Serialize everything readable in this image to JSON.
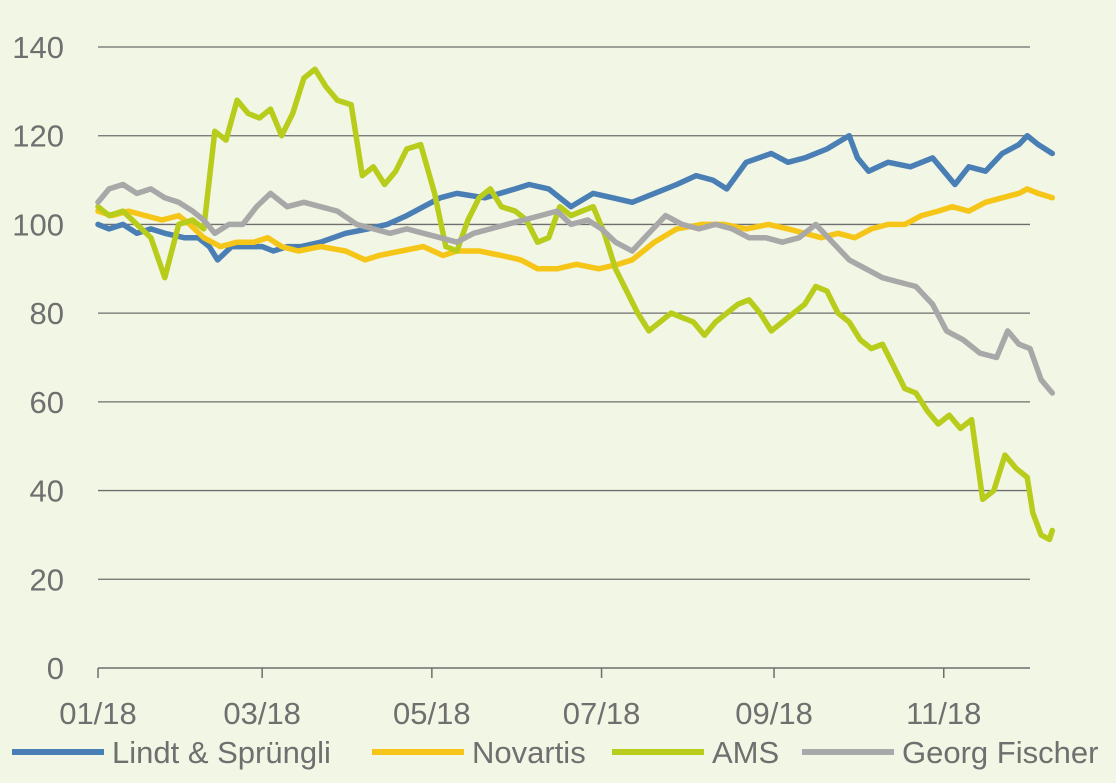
{
  "chart_data": {
    "type": "line",
    "title": "",
    "xlabel": "",
    "ylabel": "",
    "ylim": [
      0,
      140
    ],
    "xlim": [
      "2018-01-01",
      "2018-12-02"
    ],
    "yticks": [
      0,
      20,
      40,
      60,
      80,
      100,
      120,
      140
    ],
    "x_tick_labels": [
      "01/18",
      "03/18",
      "05/18",
      "07/18",
      "09/18",
      "11/18"
    ],
    "x_tick_dates": [
      "2018-01-01",
      "2018-03-01",
      "2018-05-01",
      "2018-07-01",
      "2018-09-01",
      "2018-11-01"
    ],
    "grid": "horizontal",
    "legend_position": "bottom",
    "background": "#f2f6e4",
    "series": [
      {
        "name": "Lindt & Sprüngli",
        "color": "#4a7fb5",
        "points": [
          [
            "2018-01-01",
            100
          ],
          [
            "2018-01-05",
            99
          ],
          [
            "2018-01-10",
            100
          ],
          [
            "2018-01-15",
            98
          ],
          [
            "2018-01-20",
            99
          ],
          [
            "2018-01-25",
            98
          ],
          [
            "2018-02-01",
            97
          ],
          [
            "2018-02-06",
            97
          ],
          [
            "2018-02-10",
            95
          ],
          [
            "2018-02-13",
            92
          ],
          [
            "2018-02-18",
            95
          ],
          [
            "2018-02-24",
            95
          ],
          [
            "2018-03-01",
            95
          ],
          [
            "2018-03-05",
            94
          ],
          [
            "2018-03-10",
            95
          ],
          [
            "2018-03-15",
            95
          ],
          [
            "2018-03-22",
            96
          ],
          [
            "2018-03-31",
            98
          ],
          [
            "2018-04-08",
            99
          ],
          [
            "2018-04-15",
            100
          ],
          [
            "2018-04-22",
            102
          ],
          [
            "2018-04-28",
            104
          ],
          [
            "2018-05-04",
            106
          ],
          [
            "2018-05-10",
            107
          ],
          [
            "2018-05-20",
            106
          ],
          [
            "2018-05-31",
            108
          ],
          [
            "2018-06-05",
            109
          ],
          [
            "2018-06-12",
            108
          ],
          [
            "2018-06-20",
            104
          ],
          [
            "2018-06-28",
            107
          ],
          [
            "2018-07-05",
            106
          ],
          [
            "2018-07-12",
            105
          ],
          [
            "2018-07-20",
            107
          ],
          [
            "2018-07-28",
            109
          ],
          [
            "2018-08-04",
            111
          ],
          [
            "2018-08-10",
            110
          ],
          [
            "2018-08-15",
            108
          ],
          [
            "2018-08-22",
            114
          ],
          [
            "2018-08-31",
            116
          ],
          [
            "2018-09-06",
            114
          ],
          [
            "2018-09-12",
            115
          ],
          [
            "2018-09-20",
            117
          ],
          [
            "2018-09-28",
            120
          ],
          [
            "2018-10-01",
            115
          ],
          [
            "2018-10-05",
            112
          ],
          [
            "2018-10-12",
            114
          ],
          [
            "2018-10-20",
            113
          ],
          [
            "2018-10-28",
            115
          ],
          [
            "2018-11-01",
            112
          ],
          [
            "2018-11-05",
            109
          ],
          [
            "2018-11-10",
            113
          ],
          [
            "2018-11-16",
            112
          ],
          [
            "2018-11-22",
            116
          ],
          [
            "2018-11-28",
            118
          ],
          [
            "2018-12-01",
            120
          ],
          [
            "2018-12-05",
            118
          ],
          [
            "2018-12-10",
            116
          ]
        ]
      },
      {
        "name": "Novartis",
        "color": "#f5c518",
        "points": [
          [
            "2018-01-01",
            103
          ],
          [
            "2018-01-06",
            102
          ],
          [
            "2018-01-12",
            103
          ],
          [
            "2018-01-18",
            102
          ],
          [
            "2018-01-24",
            101
          ],
          [
            "2018-01-30",
            102
          ],
          [
            "2018-02-03",
            100
          ],
          [
            "2018-02-08",
            97
          ],
          [
            "2018-02-14",
            95
          ],
          [
            "2018-02-20",
            96
          ],
          [
            "2018-02-26",
            96
          ],
          [
            "2018-03-03",
            97
          ],
          [
            "2018-03-08",
            95
          ],
          [
            "2018-03-14",
            94
          ],
          [
            "2018-03-22",
            95
          ],
          [
            "2018-03-31",
            94
          ],
          [
            "2018-04-07",
            92
          ],
          [
            "2018-04-12",
            93
          ],
          [
            "2018-04-20",
            94
          ],
          [
            "2018-04-28",
            95
          ],
          [
            "2018-05-05",
            93
          ],
          [
            "2018-05-10",
            94
          ],
          [
            "2018-05-18",
            94
          ],
          [
            "2018-05-26",
            93
          ],
          [
            "2018-06-02",
            92
          ],
          [
            "2018-06-08",
            90
          ],
          [
            "2018-06-15",
            90
          ],
          [
            "2018-06-22",
            91
          ],
          [
            "2018-06-30",
            90
          ],
          [
            "2018-07-07",
            91
          ],
          [
            "2018-07-12",
            92
          ],
          [
            "2018-07-20",
            96
          ],
          [
            "2018-07-28",
            99
          ],
          [
            "2018-08-06",
            100
          ],
          [
            "2018-08-14",
            100
          ],
          [
            "2018-08-22",
            99
          ],
          [
            "2018-08-30",
            100
          ],
          [
            "2018-09-06",
            99
          ],
          [
            "2018-09-12",
            98
          ],
          [
            "2018-09-18",
            97
          ],
          [
            "2018-09-24",
            98
          ],
          [
            "2018-09-30",
            97
          ],
          [
            "2018-10-06",
            99
          ],
          [
            "2018-10-12",
            100
          ],
          [
            "2018-10-18",
            100
          ],
          [
            "2018-10-24",
            102
          ],
          [
            "2018-10-30",
            103
          ],
          [
            "2018-11-04",
            104
          ],
          [
            "2018-11-10",
            103
          ],
          [
            "2018-11-16",
            105
          ],
          [
            "2018-11-22",
            106
          ],
          [
            "2018-11-28",
            107
          ],
          [
            "2018-12-01",
            108
          ],
          [
            "2018-12-05",
            107
          ],
          [
            "2018-12-10",
            106
          ]
        ]
      },
      {
        "name": "AMS",
        "color": "#b8cc1c",
        "points": [
          [
            "2018-01-01",
            104
          ],
          [
            "2018-01-05",
            102
          ],
          [
            "2018-01-10",
            103
          ],
          [
            "2018-01-15",
            100
          ],
          [
            "2018-01-20",
            97
          ],
          [
            "2018-01-25",
            88
          ],
          [
            "2018-01-30",
            100
          ],
          [
            "2018-02-04",
            101
          ],
          [
            "2018-02-08",
            99
          ],
          [
            "2018-02-12",
            121
          ],
          [
            "2018-02-16",
            119
          ],
          [
            "2018-02-20",
            128
          ],
          [
            "2018-02-24",
            125
          ],
          [
            "2018-02-28",
            124
          ],
          [
            "2018-03-04",
            126
          ],
          [
            "2018-03-08",
            120
          ],
          [
            "2018-03-12",
            125
          ],
          [
            "2018-03-16",
            133
          ],
          [
            "2018-03-20",
            135
          ],
          [
            "2018-03-24",
            131
          ],
          [
            "2018-03-28",
            128
          ],
          [
            "2018-04-02",
            127
          ],
          [
            "2018-04-06",
            111
          ],
          [
            "2018-04-10",
            113
          ],
          [
            "2018-04-14",
            109
          ],
          [
            "2018-04-18",
            112
          ],
          [
            "2018-04-22",
            117
          ],
          [
            "2018-04-27",
            118
          ],
          [
            "2018-05-02",
            107
          ],
          [
            "2018-05-06",
            95
          ],
          [
            "2018-05-10",
            94
          ],
          [
            "2018-05-14",
            101
          ],
          [
            "2018-05-18",
            106
          ],
          [
            "2018-05-22",
            108
          ],
          [
            "2018-05-26",
            104
          ],
          [
            "2018-05-31",
            103
          ],
          [
            "2018-06-04",
            101
          ],
          [
            "2018-06-08",
            96
          ],
          [
            "2018-06-12",
            97
          ],
          [
            "2018-06-16",
            104
          ],
          [
            "2018-06-20",
            102
          ],
          [
            "2018-06-24",
            103
          ],
          [
            "2018-06-28",
            104
          ],
          [
            "2018-07-02",
            98
          ],
          [
            "2018-07-06",
            90
          ],
          [
            "2018-07-10",
            85
          ],
          [
            "2018-07-14",
            80
          ],
          [
            "2018-07-18",
            76
          ],
          [
            "2018-07-22",
            78
          ],
          [
            "2018-07-26",
            80
          ],
          [
            "2018-07-30",
            79
          ],
          [
            "2018-08-03",
            78
          ],
          [
            "2018-08-07",
            75
          ],
          [
            "2018-08-11",
            78
          ],
          [
            "2018-08-15",
            80
          ],
          [
            "2018-08-19",
            82
          ],
          [
            "2018-08-23",
            83
          ],
          [
            "2018-08-27",
            80
          ],
          [
            "2018-08-31",
            76
          ],
          [
            "2018-09-04",
            78
          ],
          [
            "2018-09-08",
            80
          ],
          [
            "2018-09-12",
            82
          ],
          [
            "2018-09-16",
            86
          ],
          [
            "2018-09-20",
            85
          ],
          [
            "2018-09-24",
            80
          ],
          [
            "2018-09-28",
            78
          ],
          [
            "2018-10-02",
            74
          ],
          [
            "2018-10-06",
            72
          ],
          [
            "2018-10-10",
            73
          ],
          [
            "2018-10-14",
            68
          ],
          [
            "2018-10-18",
            63
          ],
          [
            "2018-10-22",
            62
          ],
          [
            "2018-10-26",
            58
          ],
          [
            "2018-10-30",
            55
          ],
          [
            "2018-11-03",
            57
          ],
          [
            "2018-11-07",
            54
          ],
          [
            "2018-11-11",
            56
          ],
          [
            "2018-11-15",
            38
          ],
          [
            "2018-11-19",
            40
          ],
          [
            "2018-11-23",
            48
          ],
          [
            "2018-11-27",
            45
          ],
          [
            "2018-12-01",
            43
          ],
          [
            "2018-12-03",
            35
          ],
          [
            "2018-12-06",
            30
          ],
          [
            "2018-12-09",
            29
          ],
          [
            "2018-12-10",
            31
          ]
        ]
      },
      {
        "name": "Georg Fischer",
        "color": "#a8a8a8",
        "points": [
          [
            "2018-01-01",
            105
          ],
          [
            "2018-01-05",
            108
          ],
          [
            "2018-01-10",
            109
          ],
          [
            "2018-01-15",
            107
          ],
          [
            "2018-01-20",
            108
          ],
          [
            "2018-01-25",
            106
          ],
          [
            "2018-01-30",
            105
          ],
          [
            "2018-02-04",
            103
          ],
          [
            "2018-02-08",
            101
          ],
          [
            "2018-02-12",
            98
          ],
          [
            "2018-02-17",
            100
          ],
          [
            "2018-02-22",
            100
          ],
          [
            "2018-02-27",
            104
          ],
          [
            "2018-03-04",
            107
          ],
          [
            "2018-03-10",
            104
          ],
          [
            "2018-03-16",
            105
          ],
          [
            "2018-03-22",
            104
          ],
          [
            "2018-03-28",
            103
          ],
          [
            "2018-04-04",
            100
          ],
          [
            "2018-04-10",
            99
          ],
          [
            "2018-04-16",
            98
          ],
          [
            "2018-04-22",
            99
          ],
          [
            "2018-04-28",
            98
          ],
          [
            "2018-05-04",
            97
          ],
          [
            "2018-05-10",
            96
          ],
          [
            "2018-05-16",
            98
          ],
          [
            "2018-05-22",
            99
          ],
          [
            "2018-05-28",
            100
          ],
          [
            "2018-06-03",
            101
          ],
          [
            "2018-06-09",
            102
          ],
          [
            "2018-06-15",
            103
          ],
          [
            "2018-06-20",
            100
          ],
          [
            "2018-06-26",
            101
          ],
          [
            "2018-07-01",
            99
          ],
          [
            "2018-07-06",
            96
          ],
          [
            "2018-07-12",
            94
          ],
          [
            "2018-07-18",
            98
          ],
          [
            "2018-07-24",
            102
          ],
          [
            "2018-07-30",
            100
          ],
          [
            "2018-08-05",
            99
          ],
          [
            "2018-08-11",
            100
          ],
          [
            "2018-08-17",
            99
          ],
          [
            "2018-08-23",
            97
          ],
          [
            "2018-08-29",
            97
          ],
          [
            "2018-09-04",
            96
          ],
          [
            "2018-09-10",
            97
          ],
          [
            "2018-09-16",
            100
          ],
          [
            "2018-09-22",
            96
          ],
          [
            "2018-09-28",
            92
          ],
          [
            "2018-10-04",
            90
          ],
          [
            "2018-10-10",
            88
          ],
          [
            "2018-10-16",
            87
          ],
          [
            "2018-10-22",
            86
          ],
          [
            "2018-10-28",
            82
          ],
          [
            "2018-11-02",
            76
          ],
          [
            "2018-11-08",
            74
          ],
          [
            "2018-11-14",
            71
          ],
          [
            "2018-11-20",
            70
          ],
          [
            "2018-11-24",
            76
          ],
          [
            "2018-11-28",
            73
          ],
          [
            "2018-12-02",
            72
          ],
          [
            "2018-12-06",
            65
          ],
          [
            "2018-12-10",
            62
          ]
        ]
      }
    ]
  }
}
